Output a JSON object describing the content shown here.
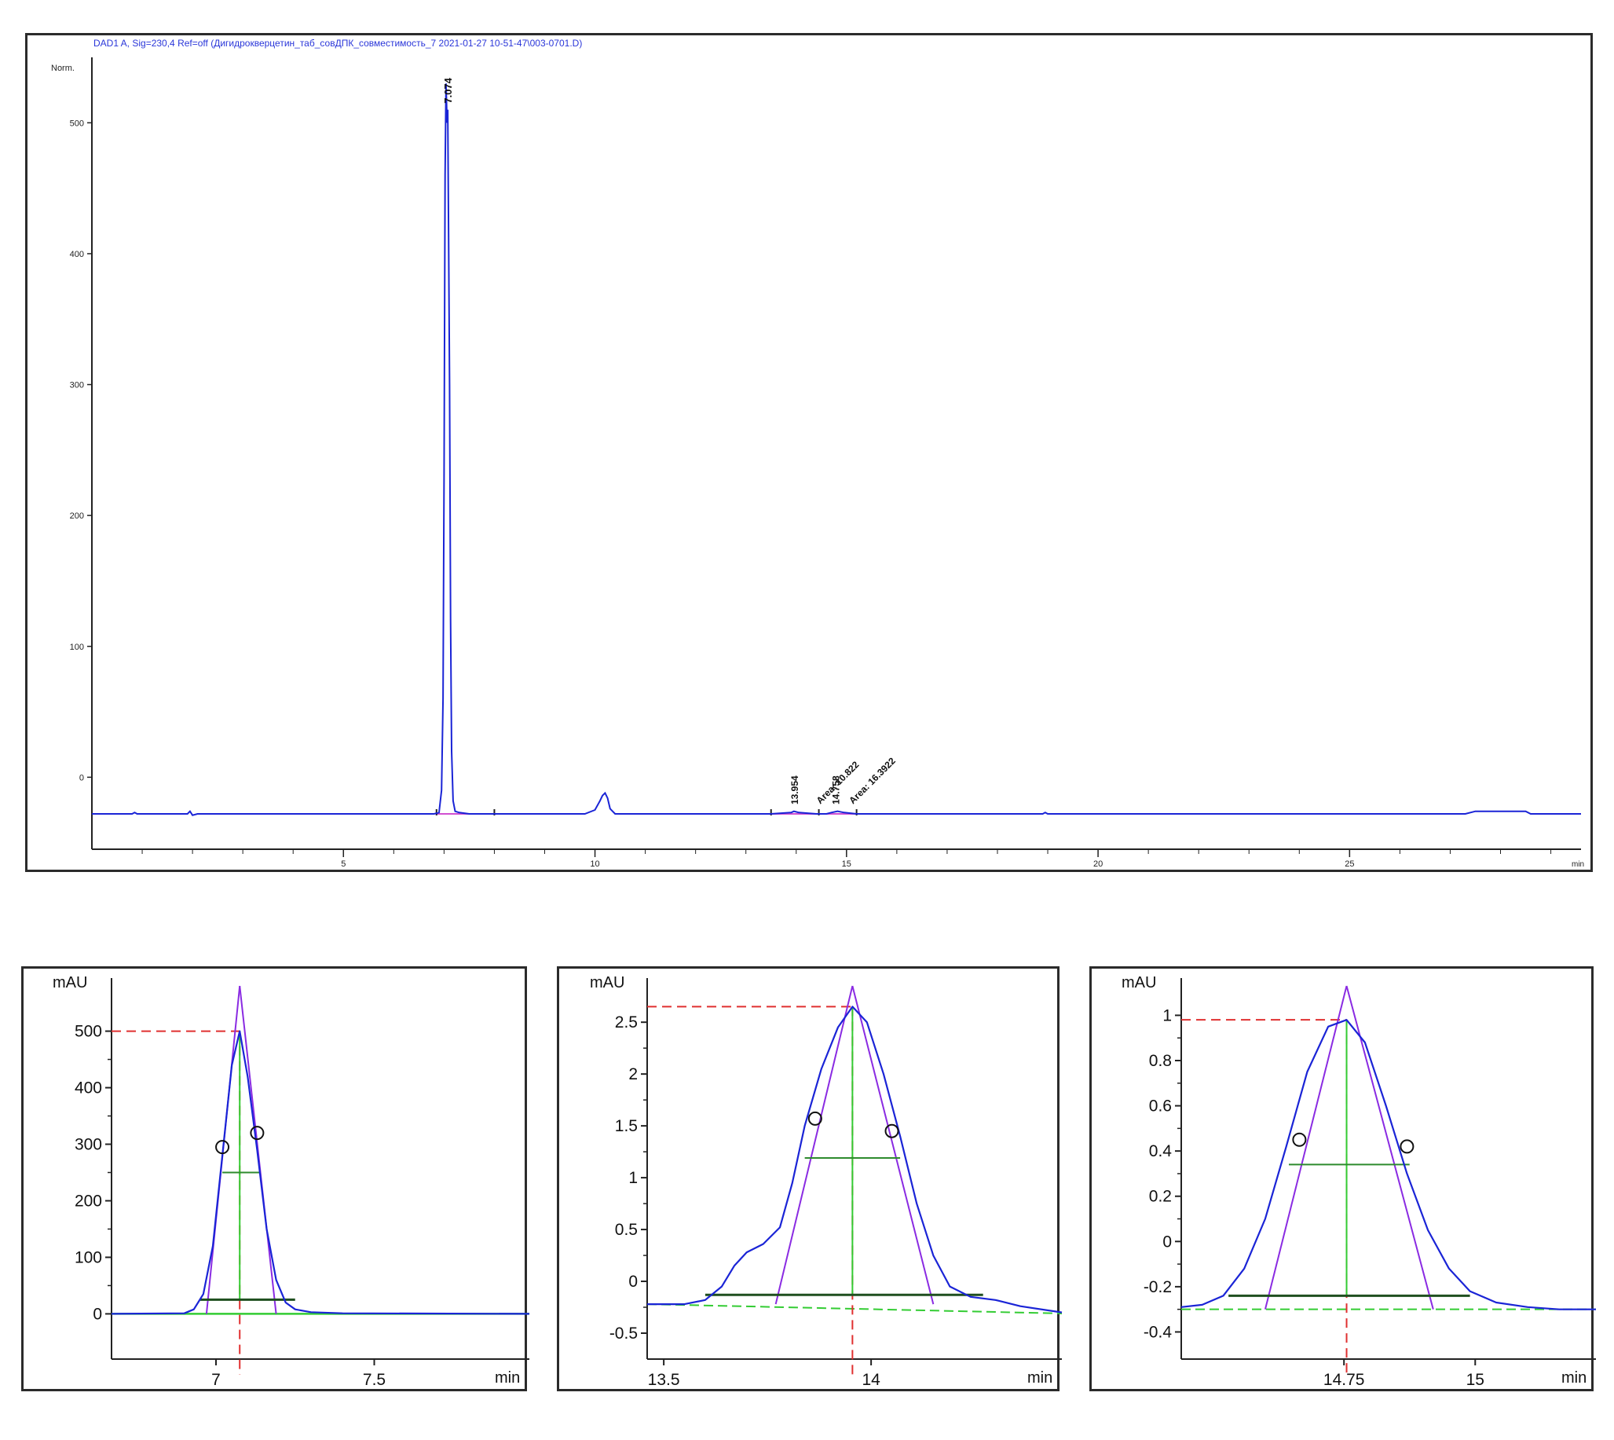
{
  "colors": {
    "trace": "#1a24d6",
    "baseline": "#d14fd1",
    "tangent": "#8a2be2",
    "green": "#33cc33",
    "dark_green": "#2e8b2e",
    "red_dash": "#e03030",
    "axis": "#222222"
  },
  "chart_data": [
    {
      "type": "line",
      "title": "DAD1 A, Sig=230,4 Ref=off (Дигидрокверцетин_таб_совДПК_совместимость_7 2021-01-27 10-51-47\\003-0701.D)",
      "ylabel": "Norm.",
      "xlabel": "min",
      "xlim": [
        0,
        29.6
      ],
      "ylim": [
        -55,
        550
      ],
      "yticks": [
        0,
        100,
        200,
        300,
        400,
        500
      ],
      "xticks": [
        5,
        10,
        15,
        20,
        25
      ],
      "baseline_y": -28,
      "series": [
        {
          "x": [
            0,
            0.8,
            0.85,
            0.9,
            1.0,
            1.9,
            1.95,
            2.0,
            2.1,
            6.5,
            6.8,
            6.9,
            6.95,
            6.98,
            7.0,
            7.02,
            7.04,
            7.06,
            7.074,
            7.09,
            7.11,
            7.13,
            7.15,
            7.18,
            7.22,
            7.3,
            7.5,
            8.0,
            9.8,
            10.0,
            10.1,
            10.15,
            10.2,
            10.25,
            10.3,
            10.4,
            10.5,
            10.6,
            11,
            13.5,
            13.9,
            13.954,
            14.05,
            14.4,
            14.6,
            14.7,
            14.822,
            14.95,
            15.2,
            18.9,
            18.95,
            19.0,
            27.3,
            27.5,
            28.0,
            28.5,
            28.6,
            29.6
          ],
          "y": [
            -28,
            -28,
            -27,
            -28,
            -28,
            -28,
            -26,
            -29,
            -28,
            -28,
            -28,
            -27,
            -10,
            60,
            230,
            460,
            530,
            500,
            510,
            420,
            300,
            120,
            20,
            -18,
            -26,
            -27,
            -28,
            -28,
            -28,
            -25,
            -18,
            -14,
            -12,
            -16,
            -24,
            -28,
            -28,
            -28,
            -28,
            -28,
            -27,
            -26,
            -27,
            -28,
            -28,
            -27,
            -26,
            -27,
            -28,
            -28,
            -27,
            -28,
            -28,
            -26,
            -26,
            -26,
            -28,
            -28
          ]
        }
      ],
      "peak_labels": [
        {
          "text": "7.074",
          "x": 7.074
        },
        {
          "text": "13.954",
          "x": 13.954
        },
        {
          "text": "Area: 10.822",
          "x": 14.4
        },
        {
          "text": "14.758",
          "x": 14.78
        },
        {
          "text": "Area: 16.3922",
          "x": 15.05
        }
      ]
    },
    {
      "type": "line",
      "ylabel": "mAU",
      "xlabel": "min",
      "xlim": [
        6.67,
        7.99
      ],
      "ylim": [
        -80,
        580
      ],
      "yticks": [
        0,
        100,
        200,
        300,
        400,
        500
      ],
      "xticks": [
        7,
        7.5
      ],
      "tick_labels": [
        "7",
        "7.5"
      ],
      "ytick_labels": [
        "0",
        "100",
        "200",
        "300",
        "400",
        "500"
      ],
      "series": [
        {
          "name": "signal",
          "x": [
            6.67,
            6.9,
            6.93,
            6.96,
            6.99,
            7.02,
            7.05,
            7.075,
            7.1,
            7.13,
            7.16,
            7.19,
            7.22,
            7.25,
            7.3,
            7.4,
            7.99
          ],
          "y": [
            0,
            1,
            8,
            35,
            120,
            280,
            440,
            500,
            420,
            290,
            150,
            60,
            20,
            8,
            3,
            1,
            0
          ]
        }
      ],
      "peak": {
        "x": 7.075,
        "y": 500
      },
      "half_height": {
        "y": 250,
        "x_left": 7.02,
        "x_right": 7.14
      },
      "base_width": {
        "y": 25,
        "x_left": 6.95,
        "x_right": 7.25
      },
      "inflection_points": [
        {
          "x": 7.02,
          "y": 295
        },
        {
          "x": 7.13,
          "y": 320
        }
      ],
      "tangent_base": [
        6.97,
        7.19
      ],
      "tangent_apex_y": 580
    },
    {
      "type": "line",
      "ylabel": "mAU",
      "xlabel": "min",
      "xlim": [
        13.46,
        14.46
      ],
      "ylim": [
        -0.75,
        2.85
      ],
      "yticks": [
        -0.5,
        0,
        0.5,
        1,
        1.5,
        2,
        2.5
      ],
      "xticks": [
        13.5,
        14
      ],
      "tick_labels": [
        "13.5",
        "14"
      ],
      "ytick_labels": [
        "-0.5",
        "0",
        "0.5",
        "1",
        "1.5",
        "2",
        "2.5"
      ],
      "series": [
        {
          "name": "signal",
          "x": [
            13.46,
            13.55,
            13.6,
            13.64,
            13.67,
            13.7,
            13.74,
            13.78,
            13.81,
            13.84,
            13.88,
            13.92,
            13.955,
            13.99,
            14.03,
            14.07,
            14.11,
            14.15,
            14.19,
            14.24,
            14.3,
            14.36,
            14.46
          ],
          "y": [
            -0.22,
            -0.22,
            -0.18,
            -0.05,
            0.15,
            0.28,
            0.36,
            0.52,
            0.95,
            1.5,
            2.05,
            2.45,
            2.65,
            2.5,
            2.0,
            1.4,
            0.75,
            0.25,
            -0.05,
            -0.15,
            -0.18,
            -0.24,
            -0.3
          ]
        }
      ],
      "peak": {
        "x": 13.955,
        "y": 2.65
      },
      "half_height": {
        "y": 1.19,
        "x_left": 13.84,
        "x_right": 14.07
      },
      "base_width": {
        "y": -0.13,
        "x_left": 13.6,
        "x_right": 14.27
      },
      "inflection_points": [
        {
          "x": 13.865,
          "y": 1.57
        },
        {
          "x": 14.05,
          "y": 1.45
        }
      ],
      "tangent_base": [
        13.77,
        14.15
      ],
      "tangent_apex_y": 2.85,
      "baseline_fit": [
        [
          13.46,
          -0.22
        ],
        [
          14.46,
          -0.31
        ]
      ]
    },
    {
      "type": "line",
      "ylabel": "mAU",
      "xlabel": "min",
      "xlim": [
        14.44,
        15.23
      ],
      "ylim": [
        -0.52,
        1.13
      ],
      "yticks": [
        -0.4,
        -0.2,
        0,
        0.2,
        0.4,
        0.6,
        0.8,
        1
      ],
      "xticks": [
        14.75,
        15
      ],
      "tick_labels": [
        "14.75",
        "15"
      ],
      "ytick_labels": [
        "-0.4",
        "-0.2",
        "0",
        "0.2",
        "0.4",
        "0.6",
        "0.8",
        "1"
      ],
      "series": [
        {
          "name": "signal",
          "x": [
            14.44,
            14.48,
            14.52,
            14.56,
            14.6,
            14.64,
            14.68,
            14.72,
            14.755,
            14.79,
            14.83,
            14.87,
            14.91,
            14.95,
            14.99,
            15.04,
            15.1,
            15.16,
            15.23
          ],
          "y": [
            -0.29,
            -0.28,
            -0.24,
            -0.12,
            0.1,
            0.42,
            0.75,
            0.95,
            0.98,
            0.88,
            0.6,
            0.3,
            0.05,
            -0.12,
            -0.22,
            -0.27,
            -0.29,
            -0.3,
            -0.3
          ]
        }
      ],
      "peak": {
        "x": 14.755,
        "y": 0.98
      },
      "half_height": {
        "y": 0.34,
        "x_left": 14.645,
        "x_right": 14.875
      },
      "base_width": {
        "y": -0.24,
        "x_left": 14.53,
        "x_right": 14.99
      },
      "inflection_points": [
        {
          "x": 14.665,
          "y": 0.45
        },
        {
          "x": 14.87,
          "y": 0.42
        }
      ],
      "tangent_base": [
        14.6,
        14.92
      ],
      "tangent_apex_y": 1.13,
      "baseline_fit": [
        [
          14.44,
          -0.3
        ],
        [
          15.23,
          -0.3
        ]
      ]
    }
  ]
}
